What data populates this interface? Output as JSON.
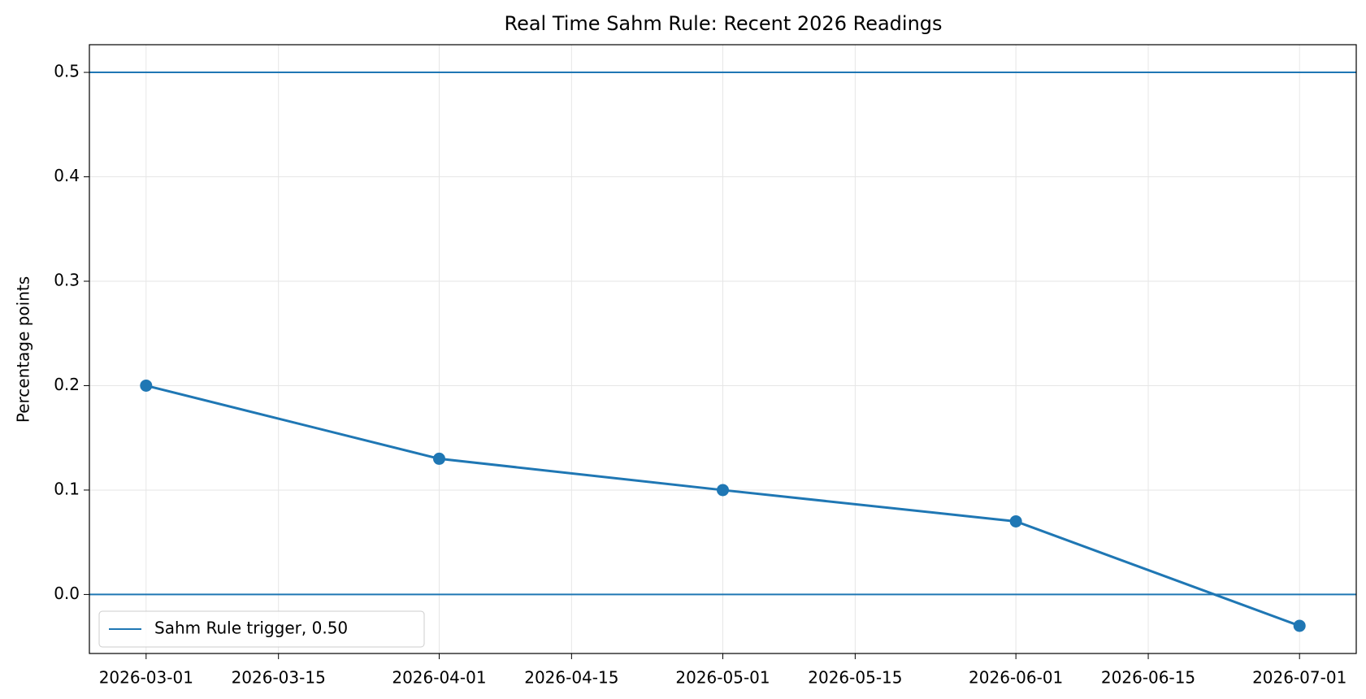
{
  "chart_data": {
    "type": "line",
    "title": "Real Time Sahm Rule: Recent 2026 Readings",
    "y_label": "Percentage points",
    "x": [
      "2026-03-01",
      "2026-04-01",
      "2026-05-01",
      "2026-06-01",
      "2026-07-01"
    ],
    "series": [
      {
        "color": "#1f77b4",
        "values": [
          0.2,
          0.13,
          0.1,
          0.07,
          -0.03
        ]
      }
    ],
    "hlines": [
      {
        "value": 0.5,
        "name": "Sahm Rule trigger, 0.50",
        "color": "#1f77b4"
      },
      {
        "value": 0,
        "color": "#1f77b4"
      }
    ],
    "xlim": [
      "2026-02-23",
      "2026-07-07"
    ],
    "xticks": [
      "2026-03-01",
      "2026-03-15",
      "2026-04-01",
      "2026-04-15",
      "2026-05-01",
      "2026-05-15",
      "2026-06-01",
      "2026-06-15",
      "2026-07-01"
    ],
    "ylim": [
      -0.0565,
      0.5265
    ],
    "yticks": [
      {
        "value": 0,
        "label": "0.0"
      },
      0.1,
      0.2,
      0.3,
      0.4,
      0.5
    ],
    "grid": true,
    "legend": "lower left"
  }
}
